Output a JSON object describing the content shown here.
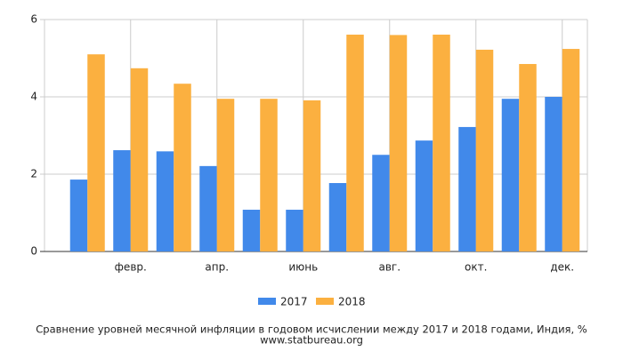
{
  "chart_data": {
    "type": "bar",
    "title": "Сравнение уровней месячной инфляции в годовом исчислении между 2017 и 2018 годами, Индия, %",
    "source": "www.statbureau.org",
    "categories": [
      null,
      "февр.",
      null,
      "апр.",
      null,
      "июнь",
      null,
      "авг.",
      null,
      "окт.",
      null,
      "дек."
    ],
    "series": [
      {
        "name": "2017",
        "color": "#4189ea",
        "values": [
          1.86,
          2.62,
          2.59,
          2.21,
          1.08,
          1.08,
          1.77,
          2.5,
          2.87,
          3.22,
          3.95,
          4.0
        ]
      },
      {
        "name": "2018",
        "color": "#fbb040",
        "values": [
          5.1,
          4.74,
          4.34,
          3.95,
          3.95,
          3.91,
          5.61,
          5.6,
          5.61,
          5.22,
          4.85,
          5.24
        ]
      }
    ],
    "ylim": [
      0,
      6
    ],
    "yticks": [
      0,
      2,
      4,
      6
    ],
    "grid": true,
    "legend": "bottom"
  }
}
